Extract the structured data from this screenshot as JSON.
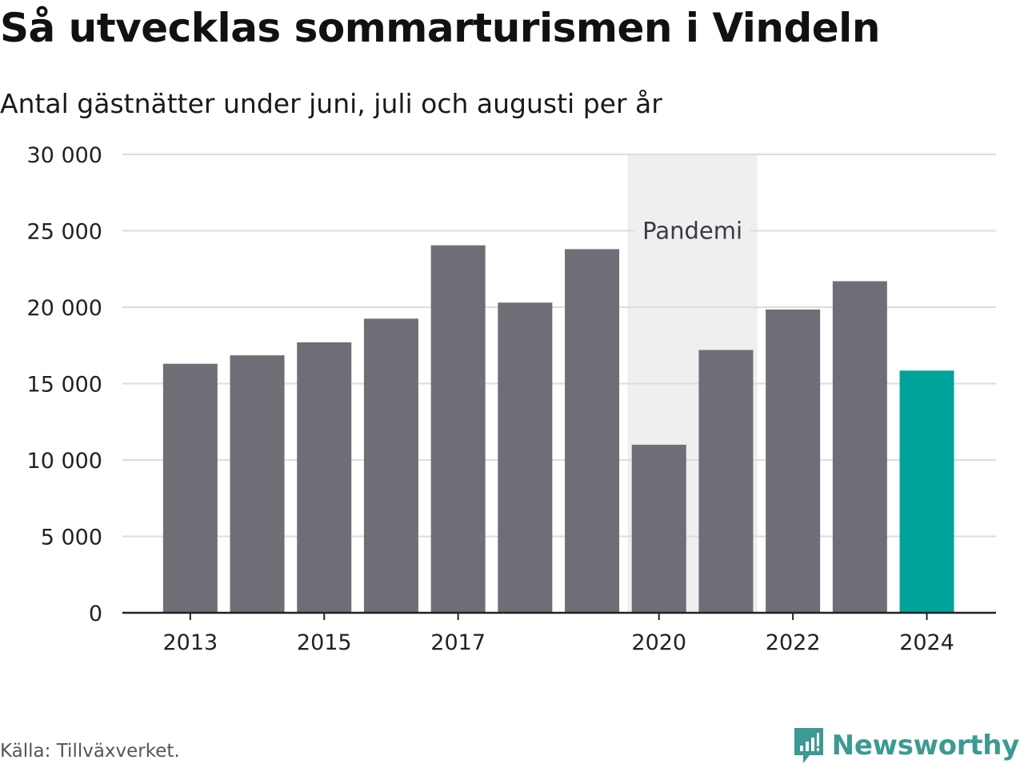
{
  "header": {
    "title": "Så utvecklas sommarturismen i Vindeln",
    "subtitle": "Antal gästnätter under juni, juli och augusti per år"
  },
  "footer": {
    "source": "Källa: Tillväxverket.",
    "brand": "Newsworthy",
    "brand_icon": "newsworthy-logo-icon"
  },
  "colors": {
    "bar": "#6f6e76",
    "highlight": "#00a39a",
    "band": "#efefef",
    "grid": "#dddddd",
    "axis": "#222222",
    "brand": "#3c9a92"
  },
  "chart_data": {
    "type": "bar",
    "categories": [
      "2013",
      "2014",
      "2015",
      "2016",
      "2017",
      "2018",
      "2019",
      "2020",
      "2021",
      "2022",
      "2023",
      "2024"
    ],
    "values": [
      16300,
      16850,
      17700,
      19250,
      24050,
      20300,
      23800,
      11000,
      17200,
      19850,
      21700,
      15850
    ],
    "highlight_category": "2024",
    "x_tick_labels": [
      "2013",
      "2015",
      "2017",
      "2020",
      "2022",
      "2024"
    ],
    "y_ticks": [
      0,
      5000,
      10000,
      15000,
      20000,
      25000,
      30000
    ],
    "y_tick_labels": [
      "0",
      "5 000",
      "10 000",
      "15 000",
      "20 000",
      "25 000",
      "30 000"
    ],
    "ylim": [
      0,
      30000
    ],
    "grid": true,
    "annotation": {
      "label": "Pandemi",
      "from": "2020",
      "to": "2021"
    }
  }
}
